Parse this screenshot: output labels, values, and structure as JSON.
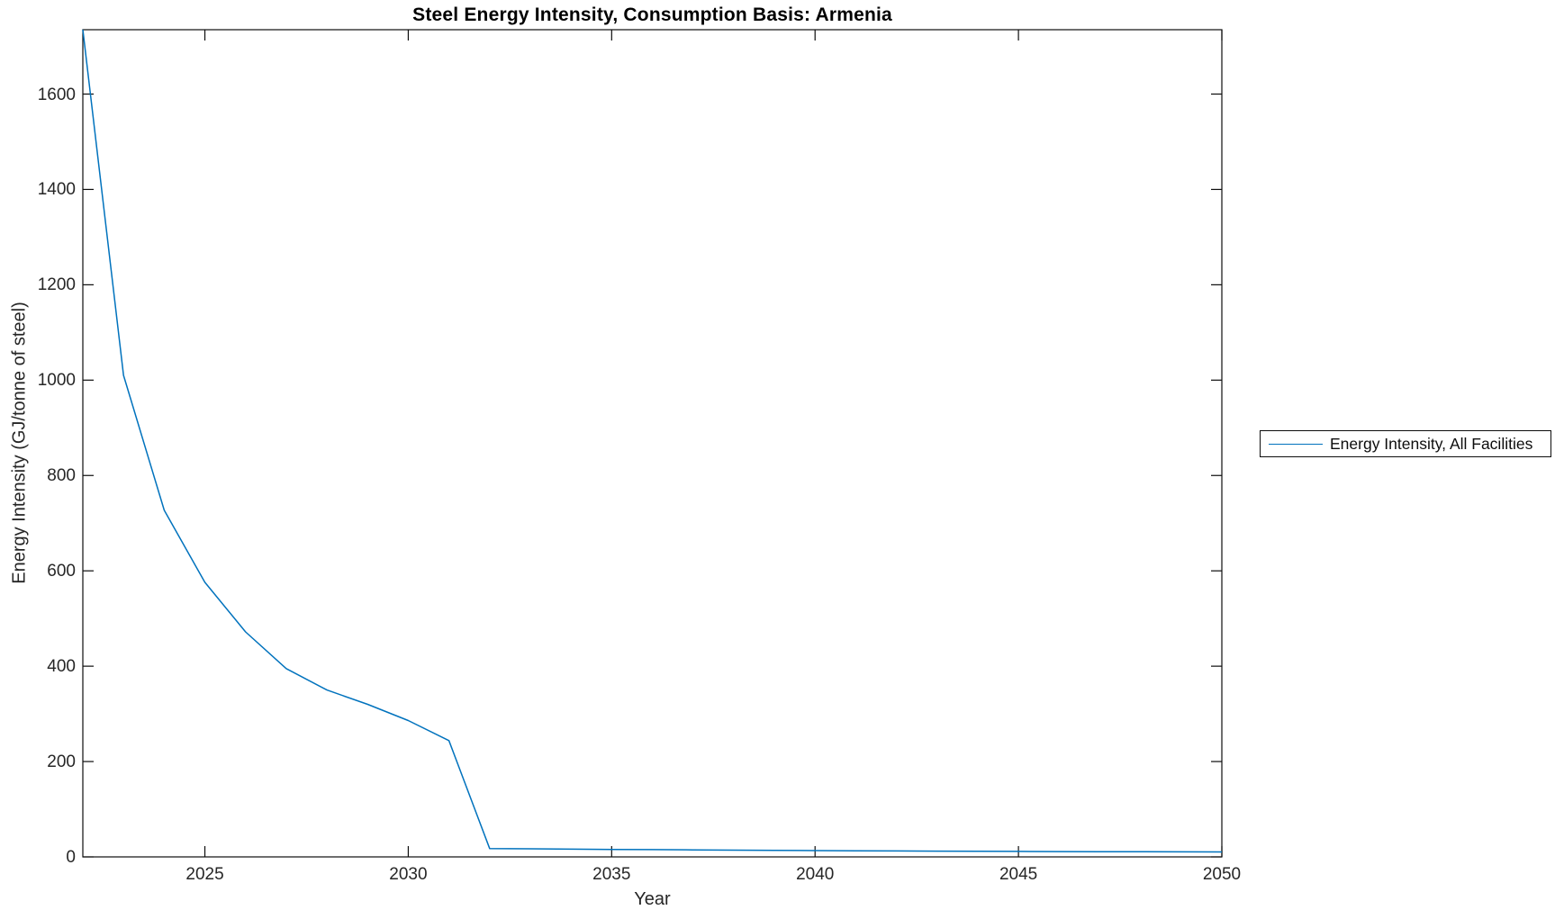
{
  "title": "Steel Energy Intensity, Consumption Basis: Armenia",
  "legend": {
    "label": "Energy Intensity, All Facilities"
  },
  "chart_data": {
    "type": "line",
    "title": "Steel Energy Intensity, Consumption Basis: Armenia",
    "xlabel": "Year",
    "ylabel": "Energy Intensity (GJ/tonne of steel)",
    "xlim": [
      2022,
      2050
    ],
    "ylim": [
      0,
      1735
    ],
    "xticks": [
      2025,
      2030,
      2035,
      2040,
      2045,
      2050
    ],
    "yticks": [
      0,
      200,
      400,
      600,
      800,
      1000,
      1200,
      1400,
      1600
    ],
    "grid": false,
    "box": true,
    "legend_position": "outside-right",
    "line_color": "#0072BD",
    "axis_color": "#0d0d0d",
    "tick_label_color": "#262626",
    "series": [
      {
        "name": "Energy Intensity, All Facilities",
        "x": [
          2022,
          2023,
          2024,
          2025,
          2026,
          2027,
          2028,
          2029,
          2030,
          2031,
          2032,
          2033,
          2034,
          2035,
          2036,
          2037,
          2038,
          2039,
          2040,
          2041,
          2042,
          2043,
          2044,
          2045,
          2046,
          2047,
          2048,
          2049,
          2050
        ],
        "y": [
          1735,
          1010,
          727,
          576,
          472,
          395,
          350,
          320,
          286,
          244,
          17.5,
          16.9,
          16.3,
          15.7,
          15.2,
          14.7,
          14.2,
          13.7,
          13.3,
          12.9,
          12.5,
          12.1,
          11.8,
          11.5,
          11.2,
          10.9,
          10.7,
          10.5,
          10.3
        ]
      }
    ]
  }
}
